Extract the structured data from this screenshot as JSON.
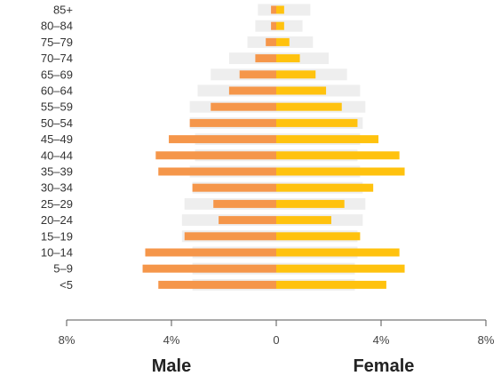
{
  "chart_data": {
    "type": "bar",
    "orientation": "horizontal",
    "layout": "population-pyramid",
    "categories": [
      "85+",
      "80–84",
      "75–79",
      "70–74",
      "65–69",
      "60–64",
      "55–59",
      "50–54",
      "45–49",
      "40–44",
      "35–39",
      "30–34",
      "25–29",
      "20–24",
      "15–19",
      "10–14",
      "5–9",
      "<5"
    ],
    "series": [
      {
        "name": "Male",
        "color": "#F5964A",
        "side": "left",
        "values": [
          0.2,
          0.2,
          0.4,
          0.8,
          1.4,
          1.8,
          2.5,
          3.3,
          4.1,
          4.6,
          4.5,
          3.2,
          2.4,
          2.2,
          3.5,
          5.0,
          5.1,
          4.5
        ]
      },
      {
        "name": "Female",
        "color": "#FFC20E",
        "side": "right",
        "values": [
          0.3,
          0.3,
          0.5,
          0.9,
          1.5,
          1.9,
          2.5,
          3.1,
          3.9,
          4.7,
          4.9,
          3.7,
          2.6,
          2.1,
          3.2,
          4.7,
          4.9,
          4.2
        ]
      },
      {
        "name": "",
        "color": "#EEEEEE",
        "role": "comparison-outline",
        "values_left": [
          0.7,
          0.8,
          1.1,
          1.8,
          2.5,
          3.0,
          3.3,
          3.3,
          3.1,
          3.1,
          3.3,
          3.2,
          3.5,
          3.6,
          3.6,
          3.2,
          3.2,
          3.2
        ],
        "values_right": [
          1.3,
          1.0,
          1.4,
          2.0,
          2.7,
          3.2,
          3.4,
          3.3,
          3.2,
          3.1,
          3.2,
          3.3,
          3.4,
          3.3,
          3.1,
          3.1,
          3.0,
          3.0
        ]
      }
    ],
    "xlim": [
      -8,
      8
    ],
    "xticks": [
      -8,
      -4,
      0,
      4,
      8
    ],
    "xtick_labels": [
      "8%",
      "4%",
      "0",
      "4%",
      "8%"
    ],
    "side_labels": {
      "left": "Male",
      "right": "Female"
    },
    "title": "",
    "xlabel": "",
    "ylabel": "",
    "grid": false,
    "legend": "none"
  }
}
